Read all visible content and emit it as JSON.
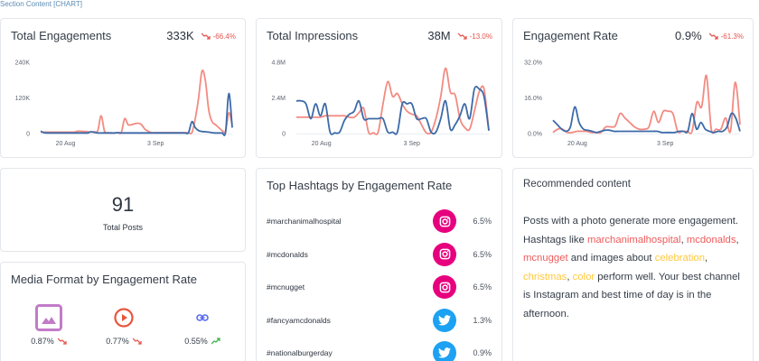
{
  "section_label": "Section Content [CHART]",
  "colors": {
    "series_current": "#3c6aa8",
    "series_previous": "#f28b82",
    "negative": "#e8554e",
    "positive": "#3bb54a",
    "instagram": "#e6007e",
    "twitter": "#1da1f2",
    "photo": "#c27bc7",
    "video": "#e8553c",
    "link": "#5a6cf0",
    "highlight_hashtag": "#f05a5a",
    "highlight_topic": "#ffc83d"
  },
  "kpis": [
    {
      "title": "Total Engagements",
      "value": "333K",
      "change": "-66.4%",
      "trend": "down"
    },
    {
      "title": "Total Impressions",
      "value": "38M",
      "change": "-13.0%",
      "trend": "down"
    },
    {
      "title": "Engagement Rate",
      "value": "0.9%",
      "change": "-61.3%",
      "trend": "down"
    }
  ],
  "chart_data": [
    {
      "type": "line",
      "title": "Total Engagements",
      "x_ticks": [
        "20 Aug",
        "3 Sep"
      ],
      "y_ticks": [
        "0",
        "120K",
        "240K"
      ],
      "ylim": [
        0,
        240000
      ],
      "grid": false,
      "series": [
        {
          "name": "current",
          "values": [
            8000,
            3000,
            2000,
            2000,
            2000,
            2000,
            2000,
            2000,
            2000,
            2000,
            2000,
            2000,
            2000,
            2000,
            2000,
            6000,
            4000,
            2000,
            2000,
            2000,
            2000,
            2000,
            2000,
            3000,
            2000,
            2000,
            2000,
            2000,
            2000,
            2000,
            2000,
            2000,
            2000,
            2000,
            2000,
            2000,
            2000,
            2000,
            2000,
            2000,
            2000,
            2000,
            2000,
            2000,
            3000,
            40000,
            20000,
            10000,
            7000,
            6000,
            5000,
            3000,
            2000,
            2000,
            2000,
            4000,
            135000,
            20000
          ]
        },
        {
          "name": "previous",
          "values": [
            5000,
            5000,
            5000,
            5000,
            5000,
            5000,
            5000,
            5000,
            5000,
            5000,
            5000,
            8000,
            8000,
            7000,
            6000,
            5000,
            6000,
            10000,
            60000,
            8000,
            3000,
            2000,
            2000,
            3000,
            4000,
            50000,
            30000,
            30000,
            33000,
            35000,
            30000,
            15000,
            8000,
            3000,
            3000,
            3000,
            3000,
            3000,
            3000,
            3000,
            3000,
            3000,
            3000,
            3000,
            3000,
            3000,
            50000,
            120000,
            210000,
            180000,
            80000,
            40000,
            30000,
            20000,
            10000,
            8000,
            70000,
            30000
          ]
        }
      ]
    },
    {
      "type": "line",
      "title": "Total Impressions",
      "x_ticks": [
        "20 Aug",
        "3 Sep"
      ],
      "y_ticks": [
        "0",
        "2.4M",
        "4.8M"
      ],
      "ylim": [
        0,
        4800000
      ],
      "grid": false,
      "series": [
        {
          "name": "current",
          "values": [
            2200000,
            2200000,
            2000000,
            1000000,
            2000000,
            1200000,
            2000000,
            100000,
            50000,
            100000,
            900000,
            1300000,
            1500000,
            2200000,
            1000000,
            1000000,
            1000000,
            1000000,
            1000000,
            100000,
            100000,
            100000,
            2000000,
            2000000,
            2000000,
            1000000,
            1000000,
            1000000,
            100000,
            100000,
            1000000,
            2200000,
            300000,
            600000,
            1200000,
            2000000,
            1000000,
            3000000,
            3000000,
            2500000,
            200000
          ]
        },
        {
          "name": "previous",
          "values": [
            1100000,
            1100000,
            1100000,
            1100000,
            1100000,
            1100000,
            1200000,
            1200000,
            1200000,
            1200000,
            1200000,
            1100000,
            1100000,
            1400000,
            1700000,
            100000,
            50000,
            100000,
            2000000,
            3500000,
            2500000,
            2700000,
            2000000,
            1500000,
            1300000,
            1200000,
            600000,
            50000,
            100000,
            1000000,
            2500000,
            4400000,
            2800000,
            2600000,
            1000000,
            400000,
            300000,
            1500000,
            2800000,
            3000000,
            200000
          ]
        }
      ]
    },
    {
      "type": "line",
      "title": "Engagement Rate",
      "x_ticks": [
        "20 Aug",
        "3 Sep"
      ],
      "y_ticks": [
        "0.0%",
        "16.0%",
        "32.0%"
      ],
      "ylim": [
        0,
        32
      ],
      "grid": false,
      "series": [
        {
          "name": "current",
          "values": [
            6,
            4,
            2,
            1,
            3,
            12,
            5,
            2,
            1.5,
            1,
            0.5,
            1,
            1.5,
            1.5,
            1,
            1,
            1,
            1,
            1,
            1,
            1,
            1,
            1,
            1,
            1,
            0.5,
            0.5,
            0.5,
            0.5,
            1,
            1,
            1,
            9,
            2,
            5,
            2,
            1,
            0.5,
            1,
            1,
            3,
            9,
            7,
            1
          ]
        },
        {
          "name": "previous",
          "values": [
            0.5,
            2,
            2,
            0.5,
            0.5,
            1,
            1,
            1,
            0.5,
            0.5,
            0.5,
            3,
            3,
            3.5,
            9,
            7,
            5,
            3,
            2,
            2,
            3,
            10,
            5,
            10,
            10,
            9,
            1,
            1,
            1,
            1,
            14,
            12,
            26,
            2,
            2,
            2,
            7,
            1,
            23,
            4
          ]
        }
      ]
    }
  ],
  "total_posts": {
    "value": "91",
    "label": "Total Posts"
  },
  "media_format": {
    "title": "Media Format by Engagement Rate",
    "items": [
      {
        "type": "photo-icon",
        "value": "0.87%",
        "trend": "down"
      },
      {
        "type": "video-icon",
        "value": "0.77%",
        "trend": "down"
      },
      {
        "type": "link-icon",
        "value": "0.55%",
        "trend": "up"
      }
    ]
  },
  "hashtags": {
    "title": "Top Hashtags by Engagement Rate",
    "rows": [
      {
        "tag": "#marchanimalhospital",
        "network": "instagram",
        "value": "6.5%"
      },
      {
        "tag": "#mcdonalds",
        "network": "instagram",
        "value": "6.5%"
      },
      {
        "tag": "#mcnugget",
        "network": "instagram",
        "value": "6.5%"
      },
      {
        "tag": "#fancyamcdonalds",
        "network": "twitter",
        "value": "1.3%"
      },
      {
        "tag": "#nationalburgerday",
        "network": "twitter",
        "value": "0.9%"
      }
    ]
  },
  "recommended": {
    "title": "Recommended content",
    "segments": [
      {
        "text": "Posts with a photo generate more engagement. Hashtags like ",
        "style": "plain"
      },
      {
        "text": "marchanimalhospital",
        "style": "hashtag"
      },
      {
        "text": ", ",
        "style": "plain"
      },
      {
        "text": "mcdonalds",
        "style": "hashtag"
      },
      {
        "text": ", ",
        "style": "plain"
      },
      {
        "text": "mcnugget",
        "style": "hashtag"
      },
      {
        "text": " and images about ",
        "style": "plain"
      },
      {
        "text": "celebration",
        "style": "topic"
      },
      {
        "text": ", ",
        "style": "plain"
      },
      {
        "text": "christmas",
        "style": "topic"
      },
      {
        "text": ", ",
        "style": "plain"
      },
      {
        "text": "color",
        "style": "topic"
      },
      {
        "text": " perform well. Your best channel is Instagram and best time of day is in the afternoon.",
        "style": "plain"
      }
    ]
  }
}
